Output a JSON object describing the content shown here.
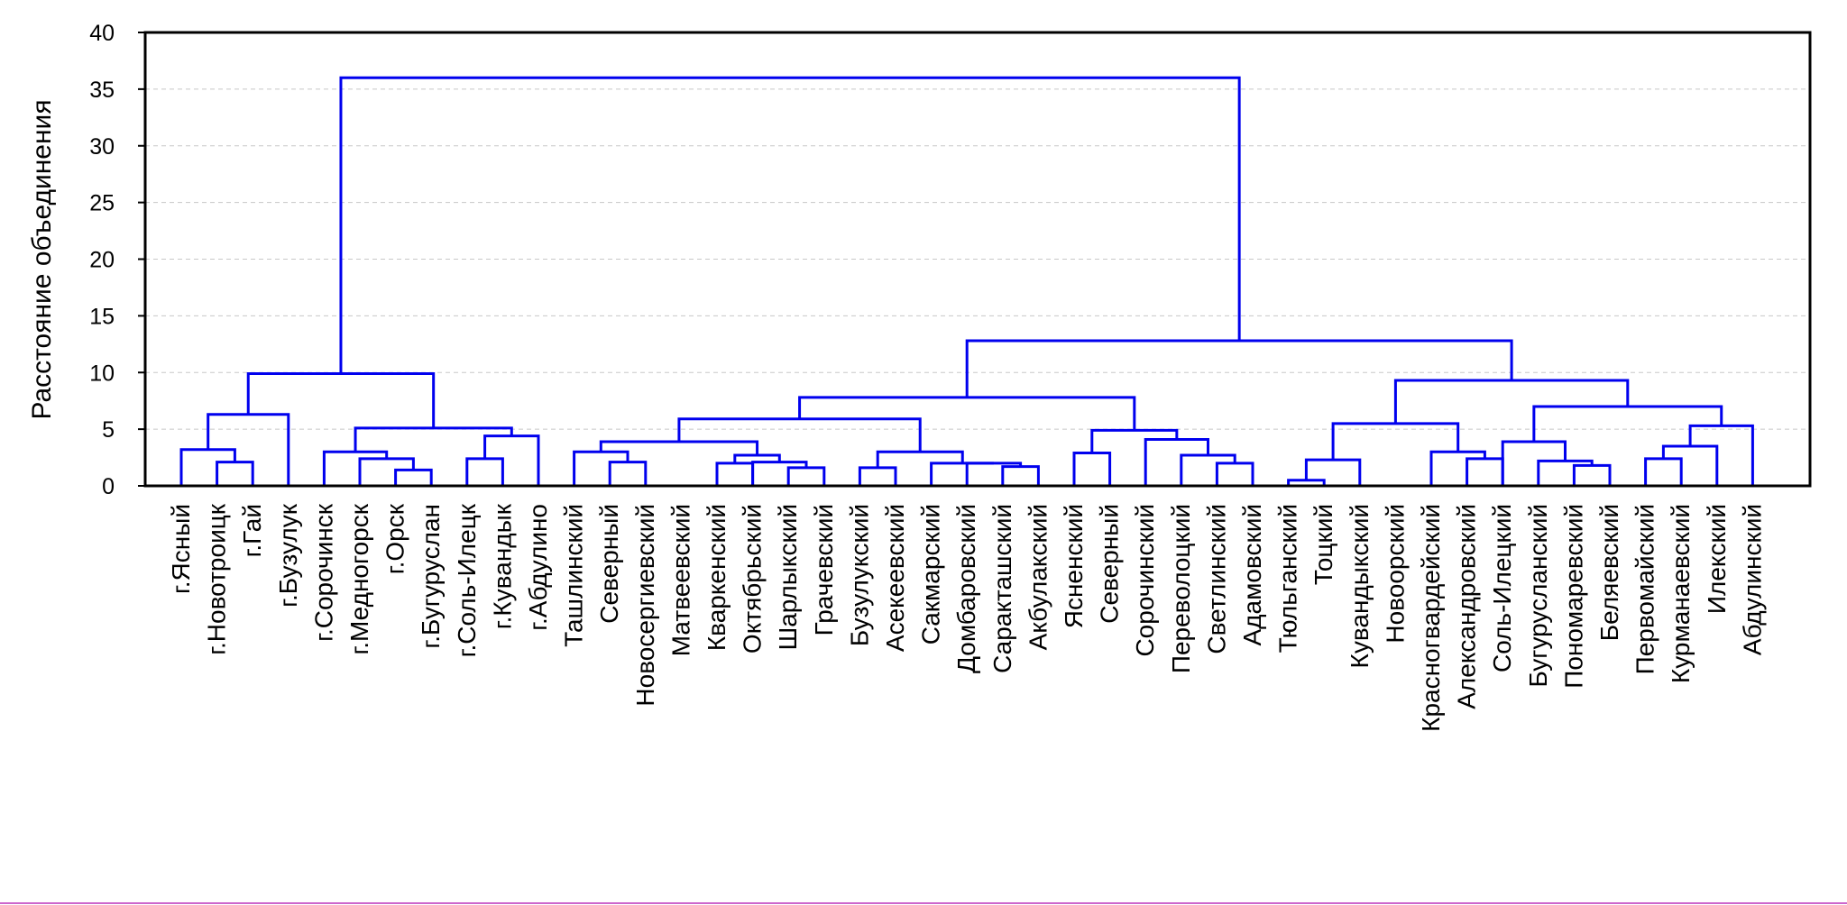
{
  "chart_data": {
    "type": "dendrogram",
    "ylabel": "Расстояние объединения",
    "ylim": [
      0,
      40
    ],
    "yticks": [
      0,
      5,
      10,
      15,
      20,
      25,
      30,
      35,
      40
    ],
    "grid": true,
    "leaves": [
      "г.Ясный",
      "г.Новотроицк",
      "г.Гай",
      "г.Бузулук",
      "г.Сорочинск",
      "г.Медногорск",
      "г.Орск",
      "г.Бугуруслан",
      "г.Соль-Илецк",
      "г.Кувандык",
      "г.Абдулино",
      "Ташлинский",
      "Северный",
      "Новосергиевский",
      "Матвеевский",
      "Кваркенский",
      "Октябрьский",
      "Шарлыкский",
      "Грачевский",
      "Бузулукский",
      "Асекеевский",
      "Сакмарский",
      "Домбаровский",
      "Саракташский",
      "Акбулакский",
      "Ясненский",
      "Северный",
      "Сорочинский",
      "Переволоцкий",
      "Светлинский",
      "Адамовский",
      "Тюльганский",
      "Тоцкий",
      "Кувандыкский",
      "Новоорский",
      "Красногвардейский",
      "Александровский",
      "Соль-Илецкий",
      "Бугурусланский",
      "Пономаревский",
      "Беляевский",
      "Первомайский",
      "Курманаевский",
      "Илекский",
      "Абдулинский"
    ],
    "merges": [
      {
        "a": 1,
        "b": 2,
        "h": 2.1
      },
      {
        "a": 0,
        "b": "m0",
        "h": 3.2
      },
      {
        "a": "m1",
        "b": 3,
        "h": 6.3
      },
      {
        "a": 6,
        "b": 7,
        "h": 1.4
      },
      {
        "a": 5,
        "b": "m3",
        "h": 2.4
      },
      {
        "a": 4,
        "b": "m4",
        "h": 3.0
      },
      {
        "a": 8,
        "b": 9,
        "h": 2.4
      },
      {
        "a": "m6",
        "b": 10,
        "h": 4.4
      },
      {
        "a": "m5",
        "b": "m7",
        "h": 5.1
      },
      {
        "a": "m2",
        "b": "m8",
        "h": 9.9
      },
      {
        "a": 12,
        "b": 13,
        "h": 2.1
      },
      {
        "a": 11,
        "b": "m10",
        "h": 3.0
      },
      {
        "a": 17,
        "b": 18,
        "h": 1.6
      },
      {
        "a": 16,
        "b": "m12",
        "h": 2.1
      },
      {
        "a": 15,
        "b": 16,
        "h": 2.0
      },
      {
        "a": "m14",
        "b": "m13",
        "h": 2.7
      },
      {
        "a": "m11",
        "b": "m15",
        "h": 3.9
      },
      {
        "a": 19,
        "b": 20,
        "h": 1.6
      },
      {
        "a": 23,
        "b": 24,
        "h": 1.7
      },
      {
        "a": 22,
        "b": "m18",
        "h": 2.0
      },
      {
        "a": 21,
        "b": "m19",
        "h": 2.0
      },
      {
        "a": "m17",
        "b": "m20",
        "h": 3.0
      },
      {
        "a": "m16",
        "b": "m21",
        "h": 5.9
      },
      {
        "a": 25,
        "b": 26,
        "h": 2.9
      },
      {
        "a": 29,
        "b": 30,
        "h": 2.0
      },
      {
        "a": 28,
        "b": "m24",
        "h": 2.7
      },
      {
        "a": 27,
        "b": "m25",
        "h": 4.1
      },
      {
        "a": "m23",
        "b": "m26",
        "h": 4.9
      },
      {
        "a": "m22",
        "b": "m27",
        "h": 7.8
      },
      {
        "a": 31,
        "b": 32,
        "h": 0.5
      },
      {
        "a": "m29",
        "b": 33,
        "h": 2.3
      },
      {
        "a": 36,
        "b": 37,
        "h": 2.4
      },
      {
        "a": 35,
        "b": "m31",
        "h": 3.0
      },
      {
        "a": "m30",
        "b": "m32",
        "h": 5.5
      },
      {
        "a": 39,
        "b": 40,
        "h": 1.8
      },
      {
        "a": 38,
        "b": "m34",
        "h": 2.2
      },
      {
        "a": 37,
        "b": "m35",
        "h": 3.9
      },
      {
        "a": 41,
        "b": 42,
        "h": 2.4
      },
      {
        "a": "m37",
        "b": 43,
        "h": 3.5
      },
      {
        "a": "m38",
        "b": 44,
        "h": 5.3
      },
      {
        "a": "m36",
        "b": "m39",
        "h": 7.0
      },
      {
        "a": "m33",
        "b": "m40",
        "h": 9.3
      },
      {
        "a": "m28",
        "b": "m41",
        "h": 12.8
      },
      {
        "a": "m9",
        "b": "m42",
        "h": 36.0
      }
    ]
  },
  "colors": {
    "links": "#0000ee",
    "frame": "#000000",
    "grid": "#c8c8c8",
    "bottom_rule": "#cc66cc"
  }
}
